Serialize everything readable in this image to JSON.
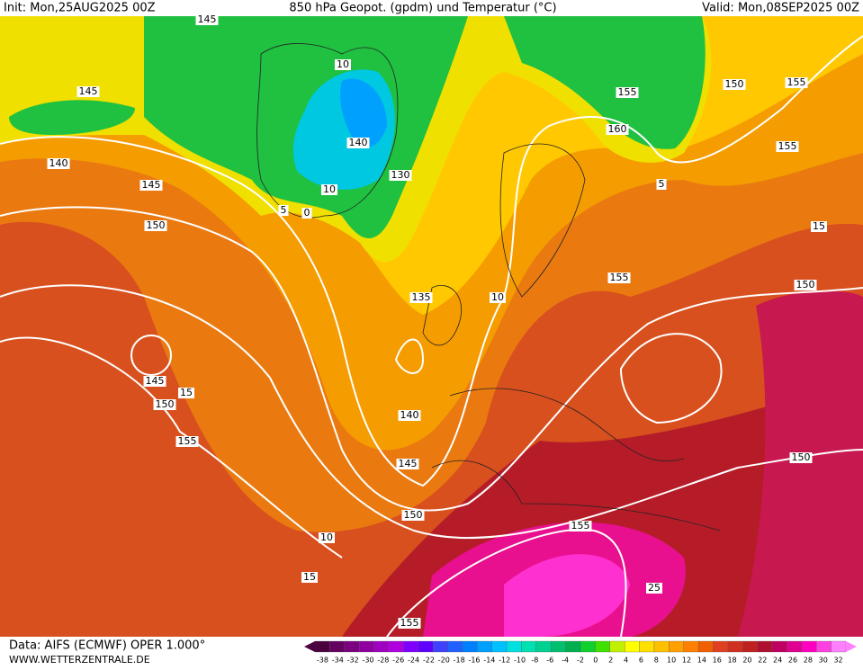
{
  "header": {
    "init": "Init: Mon,25AUG2025 00Z",
    "title": "850 hPa Geopot. (gpdm) und Temperatur (°C)",
    "valid": "Valid: Mon,08SEP2025 00Z"
  },
  "footer": {
    "data": "Data: AIFS (ECMWF) OPER 1.000°",
    "site": "WWW.WETTERZENTRALE.DE"
  },
  "colorbar": {
    "labels": [
      -38,
      -34,
      -32,
      -30,
      -28,
      -26,
      -24,
      -22,
      -20,
      -18,
      -16,
      -14,
      -12,
      -10,
      -8,
      -6,
      -4,
      -2,
      0,
      2,
      4,
      6,
      8,
      10,
      12,
      14,
      16,
      18,
      20,
      22,
      24,
      26,
      28,
      30,
      32
    ],
    "colors": [
      "#4b0040",
      "#650060",
      "#7a0080",
      "#9000a0",
      "#a000c0",
      "#b000e0",
      "#8000ff",
      "#6000ff",
      "#4040ff",
      "#2060ff",
      "#0080ff",
      "#00a0ff",
      "#00c0ff",
      "#00e0e0",
      "#00e0b0",
      "#00d090",
      "#00c070",
      "#00b050",
      "#10d030",
      "#40e000",
      "#c0f000",
      "#ffff00",
      "#ffe000",
      "#ffc000",
      "#ffa000",
      "#ff8000",
      "#f06000",
      "#e04020",
      "#d03020",
      "#c02020",
      "#b01030",
      "#c00060",
      "#e00090",
      "#ff00c0",
      "#ff40e0",
      "#ff80ff"
    ]
  },
  "contour_labels": [
    145,
    145,
    140,
    145,
    150,
    10,
    140,
    130,
    10,
    0,
    5,
    155,
    160,
    150,
    155,
    155,
    5,
    15,
    155,
    150,
    135,
    10,
    145,
    150,
    15,
    155,
    140,
    145,
    150,
    150,
    155,
    10,
    15,
    25,
    155
  ]
}
